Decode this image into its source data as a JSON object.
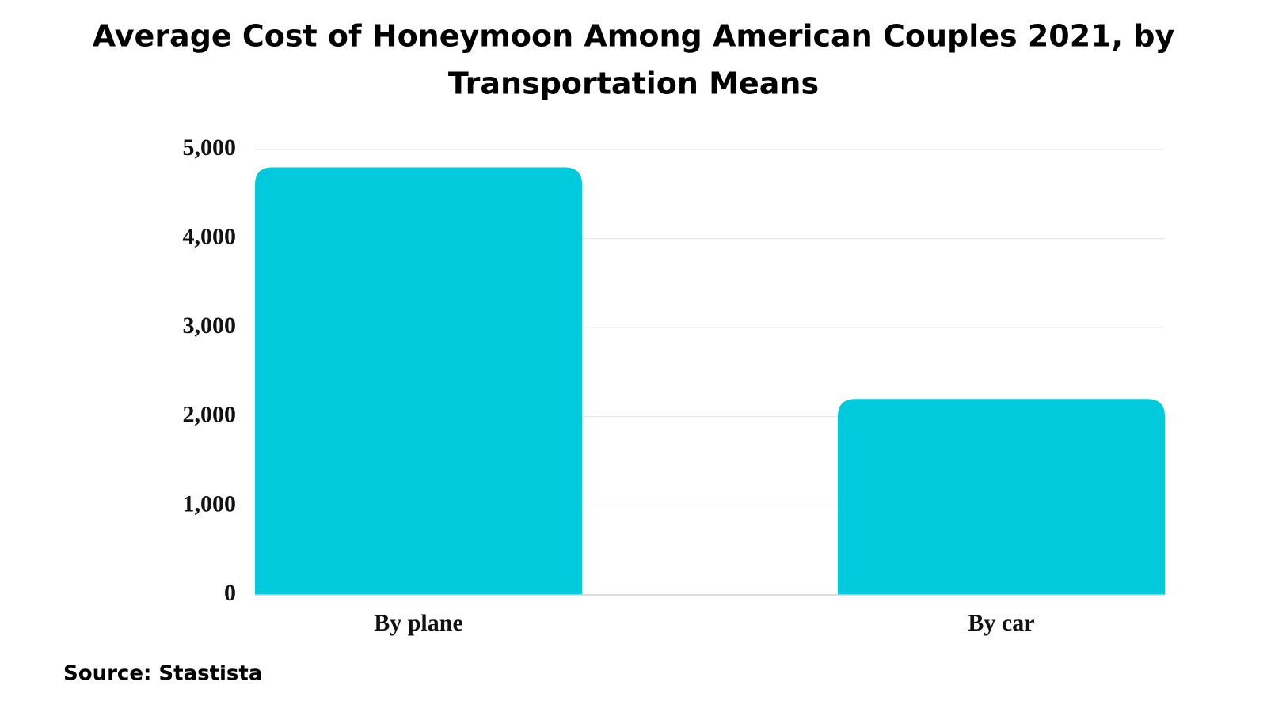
{
  "chart_data": {
    "type": "bar",
    "title": [
      "Average Cost of Honeymoon Among American Couples 2021, by",
      "Transportation Means"
    ],
    "categories": [
      "By plane",
      "By car"
    ],
    "values": [
      4800,
      2200
    ],
    "color": "#00cadc",
    "ylim": [
      0,
      5000
    ],
    "yticks": [
      0,
      {
        "value": 1000,
        "label": "1,000"
      },
      {
        "value": 2000,
        "label": "2,000"
      },
      {
        "value": 3000,
        "label": "3,000"
      },
      {
        "value": 4000,
        "label": "4,000"
      },
      {
        "value": 5000,
        "label": "5,000"
      }
    ],
    "grid": true,
    "source": "Source: Stastista"
  }
}
